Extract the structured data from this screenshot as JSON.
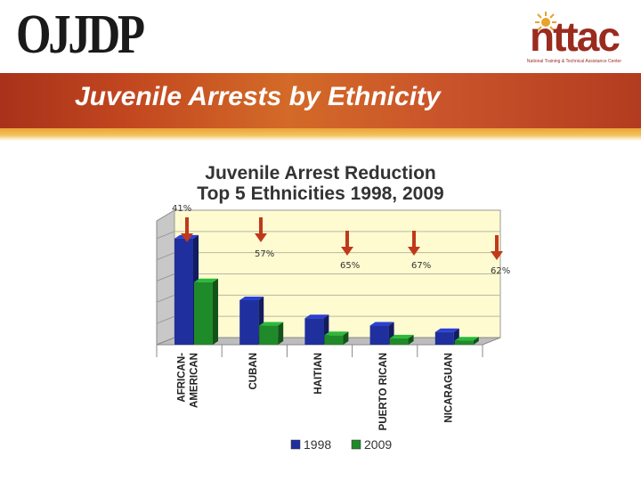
{
  "header": {
    "left_logo": "OJJDP",
    "right_logo": "nttac",
    "right_logo_subtitle": "National Training & Technical Assistance Center"
  },
  "slide": {
    "title": "Juvenile Arrests by  Ethnicity"
  },
  "colors": {
    "series_1998": "#1f2f9e",
    "series_2009": "#1f8a2a",
    "arrow": "#c0391b",
    "plot_bg": "#fffbd0"
  },
  "chart_data": {
    "type": "bar",
    "title": "Juvenile Arrest Reduction Top 5 Ethnicities 1998, 2009",
    "title_lines": [
      "Juvenile Arrest Reduction",
      "Top 5 Ethnicities 1998, 2009"
    ],
    "categories": [
      "AFRICAN-AMERICAN",
      "CUBAN",
      "HAITIAN",
      "PUERTO RICAN",
      "NICARAGUAN"
    ],
    "category_lines": [
      [
        "AFRICAN-",
        "AMERICAN"
      ],
      [
        "CUBAN"
      ],
      [
        "HAITIAN"
      ],
      [
        "PUERTO RICAN"
      ],
      [
        "NICARAGUAN"
      ]
    ],
    "series": [
      {
        "name": "1998",
        "values": [
          100,
          42,
          25,
          18,
          12
        ]
      },
      {
        "name": "2009",
        "values": [
          59,
          18,
          9,
          6,
          4
        ]
      }
    ],
    "annotations": [
      "41%",
      "57%",
      "65%",
      "67%",
      "62%"
    ],
    "ylim": [
      0,
      120
    ],
    "grid": true,
    "legend": "bottom"
  }
}
